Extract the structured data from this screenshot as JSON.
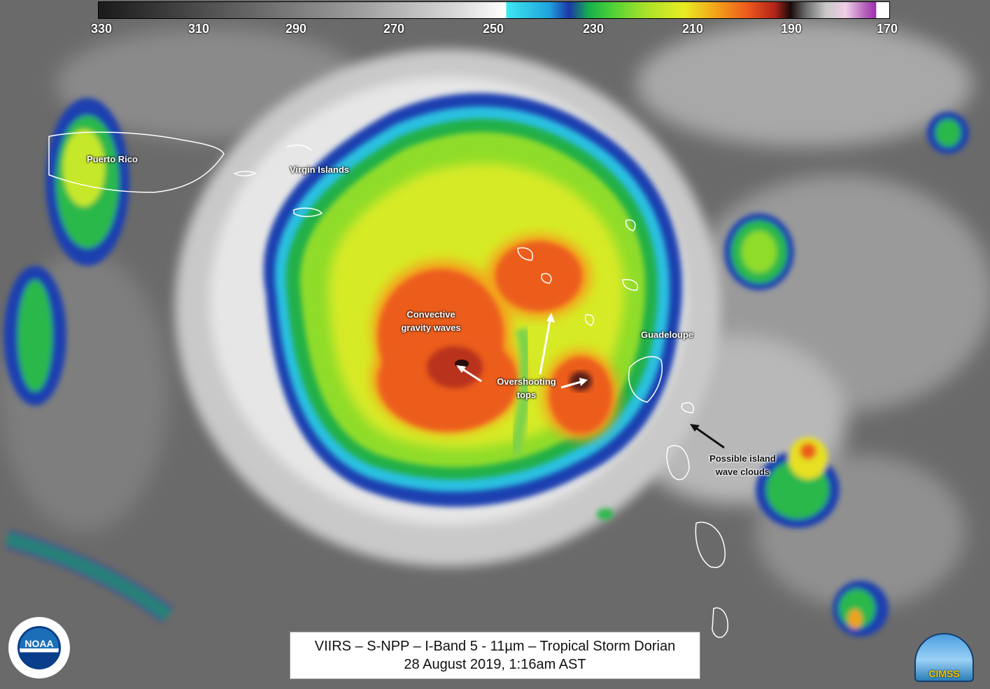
{
  "colorbar": {
    "ticks": [
      "330",
      "310",
      "290",
      "270",
      "250",
      "230",
      "210",
      "190",
      "170"
    ]
  },
  "labels": {
    "puerto_rico": "Puerto Rico",
    "virgin_islands": "Virgin Islands",
    "convective_line1": "Convective",
    "convective_line2": "gravity waves",
    "overshooting_line1": "Overshooting",
    "overshooting_line2": "tops",
    "guadeloupe": "Guadeloupe",
    "wave_line1": "Possible island",
    "wave_line2": "wave clouds"
  },
  "title": {
    "line1": "VIIRS – S-NPP – I-Band 5 - 11µm – Tropical Storm Dorian",
    "line2": "28 August 2019, 1:16am AST"
  },
  "logos": {
    "noaa": "NOAA",
    "cimss": "CIMSS"
  }
}
